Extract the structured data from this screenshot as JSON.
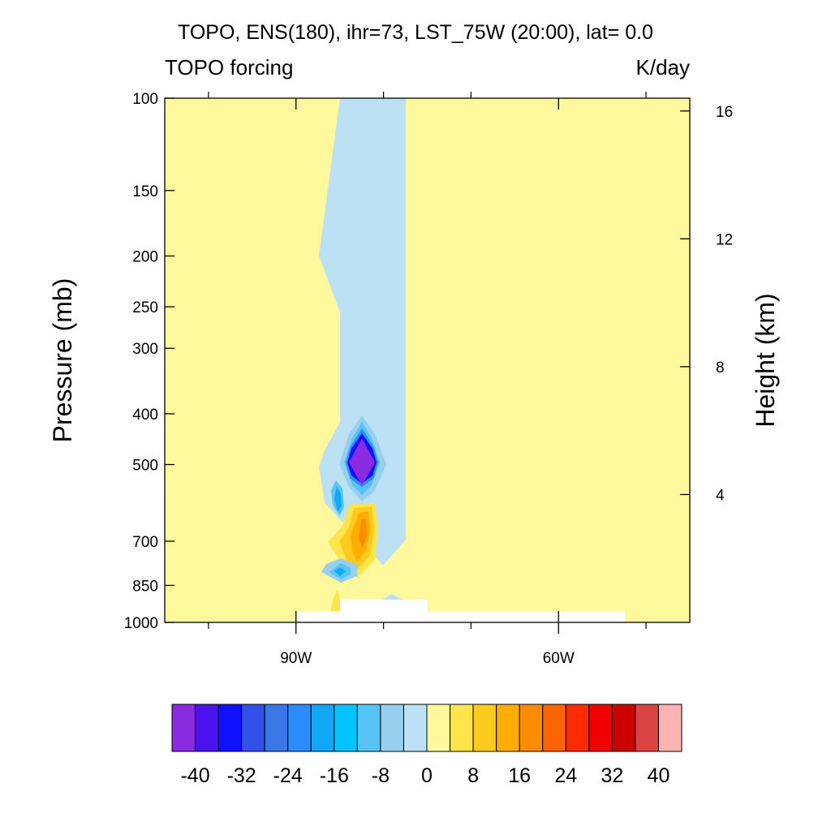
{
  "chart_data": {
    "type": "contour",
    "title": "TOPO, ENS(180), ihr=73, LST_75W (20:00), lat=  0.0",
    "left_subtitle": "TOPO forcing",
    "right_subtitle": "K/day",
    "ylabel": "Pressure (mb)",
    "ylabel_right": "Height (km)",
    "xlim_deg_east": [
      -105,
      -45
    ],
    "ylim_mb": [
      1000,
      100
    ],
    "y_log_scale": true,
    "x_ticks": [
      {
        "value": -90,
        "label": "90W"
      },
      {
        "value": -60,
        "label": "60W"
      }
    ],
    "x_minor_ticks": [
      -100,
      -80,
      -70,
      -50
    ],
    "y_ticks": [
      {
        "value": 100,
        "label": "100"
      },
      {
        "value": 150,
        "label": "150"
      },
      {
        "value": 200,
        "label": "200"
      },
      {
        "value": 250,
        "label": "250"
      },
      {
        "value": 300,
        "label": "300"
      },
      {
        "value": 400,
        "label": "400"
      },
      {
        "value": 500,
        "label": "500"
      },
      {
        "value": 700,
        "label": "700"
      },
      {
        "value": 850,
        "label": "850"
      },
      {
        "value": 1000,
        "label": "1000"
      }
    ],
    "height_ticks_km": [
      {
        "value": 4,
        "label": "4"
      },
      {
        "value": 8,
        "label": "8"
      },
      {
        "value": 12,
        "label": "12"
      },
      {
        "value": 16,
        "label": "16"
      }
    ],
    "colorbar": {
      "levels": [
        -40,
        -36,
        -32,
        -28,
        -24,
        -20,
        -16,
        -12,
        -8,
        -4,
        0,
        4,
        8,
        12,
        16,
        20,
        24,
        28,
        32,
        36,
        40
      ],
      "labels": [
        "-40",
        "-32",
        "-24",
        "-16",
        "-8",
        "0",
        "8",
        "16",
        "24",
        "32",
        "40"
      ],
      "colors": [
        "#8a2be2",
        "#4b12f0",
        "#1010ff",
        "#3050e8",
        "#3a78e8",
        "#2a8cff",
        "#12a8f8",
        "#00c4ff",
        "#56c4f4",
        "#96d0ee",
        "#bce0f4",
        "#fff89c",
        "#ffe44a",
        "#ffca1e",
        "#ffae00",
        "#ff8c00",
        "#ff6400",
        "#ff2a00",
        "#f00000",
        "#cc0000",
        "#dc4444",
        "#ffb4b4"
      ]
    },
    "background_value_range": [
      0,
      4
    ],
    "features": [
      {
        "name": "negative-band",
        "range": [
          -4,
          0
        ],
        "lon_range": [
          -85,
          -77.5
        ],
        "p_range_mb": [
          100,
          780
        ]
      },
      {
        "name": "cold-core",
        "min": -40,
        "lon": -82.5,
        "p_mb": 500
      },
      {
        "name": "warm-core",
        "max": 20,
        "lon": -83,
        "p_mb": 680
      },
      {
        "name": "small-cold-cell",
        "min": -16,
        "lon": -83.5,
        "p_mb": 800
      }
    ],
    "missing_topography": [
      {
        "lon_range": [
          -90,
          -85
        ],
        "p_range_mb": [
          960,
          1000
        ]
      },
      {
        "lon_range": [
          -85,
          -75
        ],
        "p_range_mb": [
          935,
          1000
        ]
      },
      {
        "lon_range": [
          -75,
          -52.5
        ],
        "p_range_mb": [
          960,
          1000
        ]
      }
    ]
  }
}
